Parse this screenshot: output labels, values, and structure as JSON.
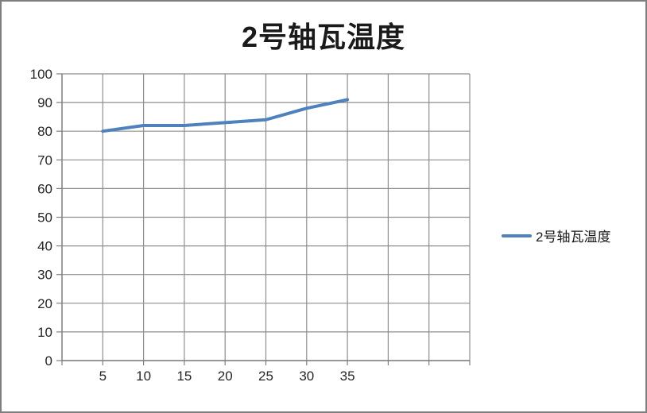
{
  "window": {
    "background": "#ffffff",
    "border_color": "#7f7f7f"
  },
  "chart_data": {
    "type": "line",
    "title": "2号轴瓦温度",
    "categories": [
      5,
      10,
      15,
      20,
      25,
      30,
      35
    ],
    "series": [
      {
        "name": "2号轴瓦温度",
        "values": [
          80,
          82,
          82,
          83,
          84,
          88,
          91
        ],
        "color": "#4F81BD"
      }
    ],
    "xlabel": "",
    "ylabel": "",
    "ylim": [
      0,
      100
    ],
    "yticks": [
      0,
      10,
      20,
      30,
      40,
      50,
      60,
      70,
      80,
      90,
      100
    ],
    "x_total_slots": 10,
    "grid": true,
    "legend_position": "right",
    "gridline_color": "#8e8e8e",
    "axis_color": "#7f7f7f",
    "label_color": "#262626"
  },
  "legend": {
    "label": "2号轴瓦温度",
    "marker_color": "#4F81BD"
  }
}
